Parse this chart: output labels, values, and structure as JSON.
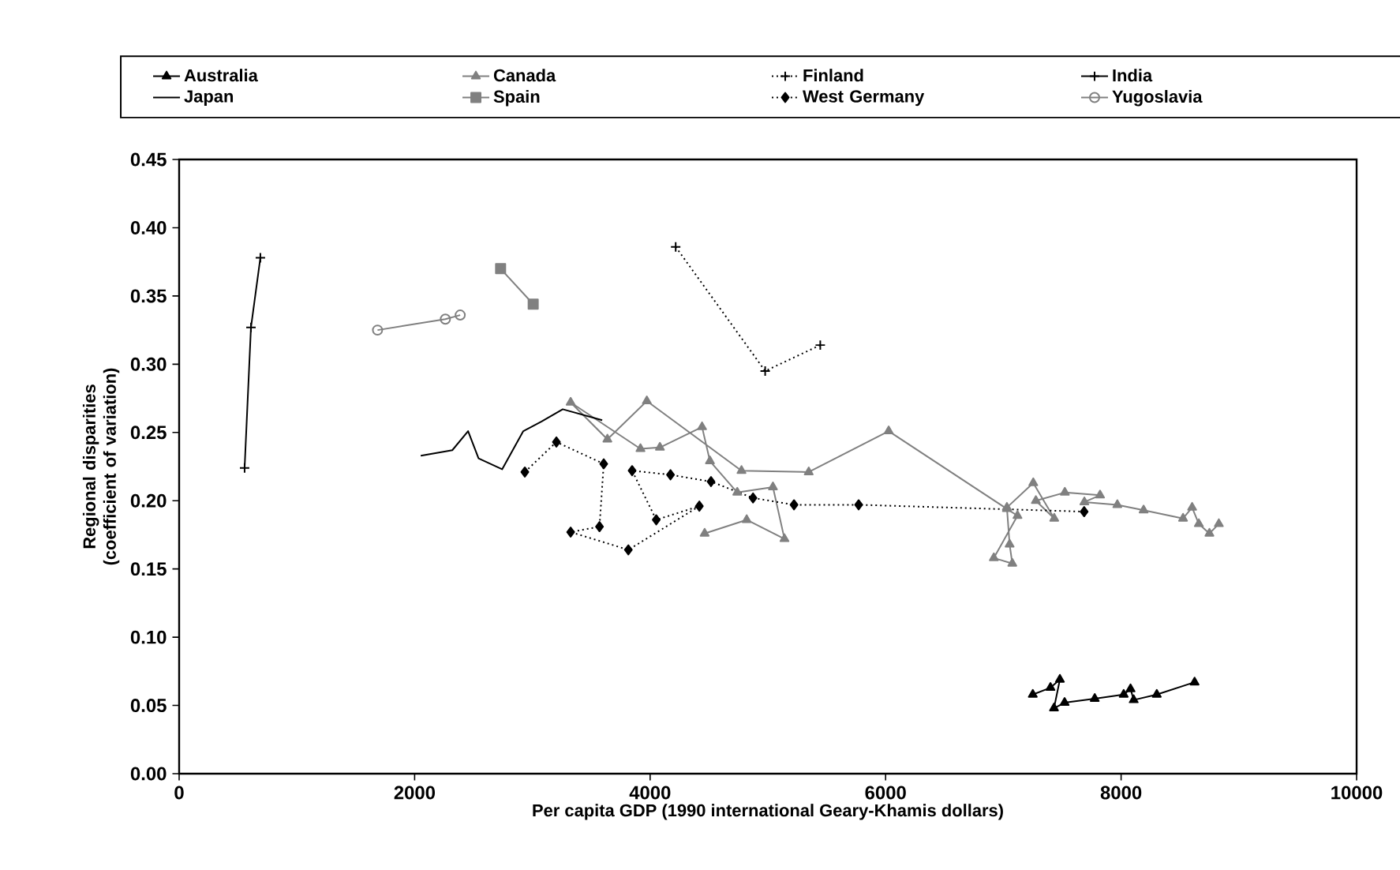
{
  "chart_data": {
    "type": "line",
    "xlabel": "Per capita GDP (1990 international Geary-Khamis dollars)",
    "ylabel": "Regional disparities\n(coefficient of variation)",
    "xlim": [
      0,
      10000
    ],
    "xticks": [
      0,
      2000,
      4000,
      6000,
      8000,
      10000
    ],
    "ylim": [
      0,
      0.45
    ],
    "yticks": [
      {
        "value": 0,
        "label": "0.00"
      },
      {
        "value": 0.05,
        "label": "0.05"
      },
      {
        "value": 0.1,
        "label": "0.10"
      },
      {
        "value": 0.15,
        "label": "0.15"
      },
      {
        "value": 0.2,
        "label": "0.20"
      },
      {
        "value": 0.25,
        "label": "0.25"
      },
      {
        "value": 0.3,
        "label": "0.30"
      },
      {
        "value": 0.35,
        "label": "0.35"
      },
      {
        "value": 0.4,
        "label": "0.40"
      },
      {
        "value": 0.45,
        "label": "0.45"
      }
    ],
    "grid": false,
    "legend": "top",
    "series": [
      {
        "name": "Australia",
        "color": "#000000",
        "marker": "triangle",
        "line_style": "solid",
        "x": [
          7250,
          7400,
          7480,
          7430,
          7520,
          7776,
          8022,
          8080,
          8107,
          8303,
          8624
        ],
        "values": [
          0.058,
          0.063,
          0.069,
          0.048,
          0.052,
          0.055,
          0.058,
          0.062,
          0.054,
          0.058,
          0.067
        ]
      },
      {
        "name": "Canada",
        "color": "#808080",
        "marker": "triangle",
        "line_style": "solid",
        "x": [
          4463,
          4820,
          5141,
          5043,
          4740,
          4508,
          4441,
          4083,
          3918,
          3325,
          3637,
          3972,
          4776,
          5347,
          6026,
          7030,
          7120,
          6919,
          7076,
          7053,
          7030,
          7254,
          7432,
          7276,
          7522,
          7821,
          7688,
          7968,
          8191,
          8526,
          8603,
          8660,
          8750,
          8830
        ],
        "values": [
          0.176,
          0.186,
          0.172,
          0.21,
          0.206,
          0.229,
          0.254,
          0.239,
          0.238,
          0.272,
          0.245,
          0.273,
          0.222,
          0.221,
          0.251,
          0.194,
          0.189,
          0.158,
          0.154,
          0.168,
          0.195,
          0.213,
          0.187,
          0.2,
          0.206,
          0.204,
          0.199,
          0.197,
          0.193,
          0.187,
          0.195,
          0.183,
          0.176,
          0.183
        ]
      },
      {
        "name": "Finland",
        "color": "#000000",
        "marker": "cross",
        "line_style": "dotted",
        "x": [
          4217,
          4977,
          5445
        ],
        "values": [
          0.386,
          0.295,
          0.314
        ]
      },
      {
        "name": "India",
        "color": "#000000",
        "marker": "cross",
        "line_style": "solid",
        "x": [
          556,
          610,
          690
        ],
        "values": [
          0.224,
          0.327,
          0.378
        ]
      },
      {
        "name": "Japan",
        "color": "#000000",
        "marker": "none",
        "line_style": "solid",
        "x": [
          2052,
          2320,
          2454,
          2543,
          2743,
          2923,
          3078,
          3258,
          3593
        ],
        "values": [
          0.233,
          0.237,
          0.251,
          0.231,
          0.223,
          0.251,
          0.258,
          0.267,
          0.259
        ]
      },
      {
        "name": "Spain",
        "color": "#808080",
        "marker": "square",
        "line_style": "solid",
        "x": [
          2730,
          3007
        ],
        "values": [
          0.37,
          0.344
        ]
      },
      {
        "name": "West Germany",
        "color": "#000000",
        "marker": "diamond",
        "line_style": "dotted",
        "x": [
          2936,
          3204,
          3606,
          3570,
          3325,
          3815,
          4418,
          4052,
          3847,
          4173,
          4517,
          4874,
          5222,
          5771,
          7686
        ],
        "values": [
          0.221,
          0.243,
          0.227,
          0.181,
          0.177,
          0.164,
          0.196,
          0.186,
          0.222,
          0.219,
          0.214,
          0.202,
          0.197,
          0.197,
          0.192
        ]
      },
      {
        "name": "Yugoslavia",
        "color": "#808080",
        "marker": "circle",
        "line_style": "solid",
        "x": [
          1685,
          2261,
          2387
        ],
        "values": [
          0.325,
          0.333,
          0.336
        ]
      }
    ]
  }
}
